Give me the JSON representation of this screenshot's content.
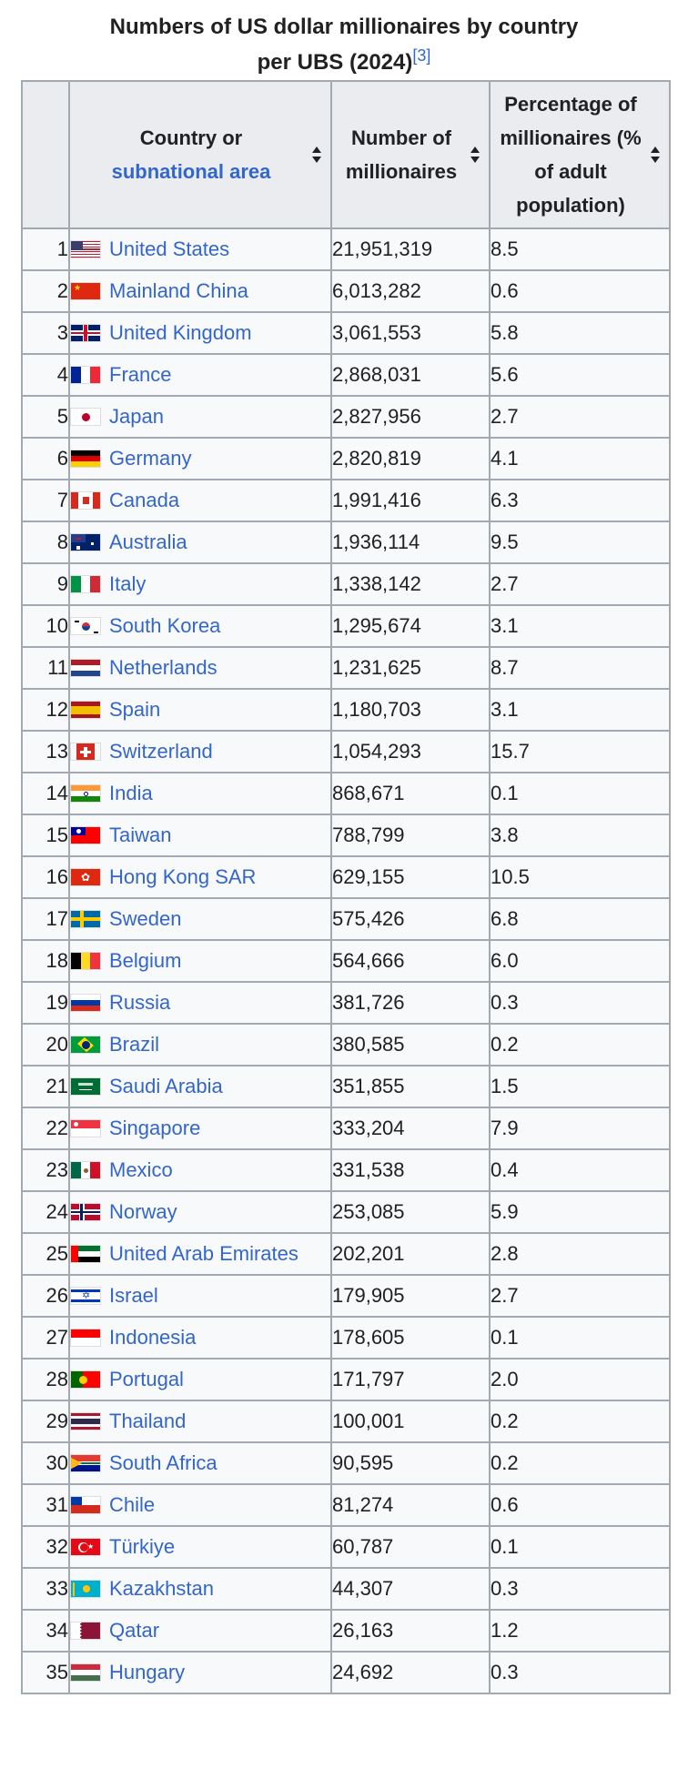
{
  "caption": {
    "line1": "Numbers of US dollar millionaires by country",
    "line2": "per UBS (2024)",
    "ref": "[3]"
  },
  "table": {
    "headers": {
      "country_line1": "Country or",
      "country_link": "subnational area",
      "number": "Number of millionaires",
      "percentage": "Percentage of millionaires (% of adult population)"
    },
    "rows": [
      {
        "rank": "1",
        "country": "United States",
        "flag": "us",
        "number": "21,951,319",
        "pct": "8.5"
      },
      {
        "rank": "2",
        "country": "Mainland China",
        "flag": "cn",
        "number": "6,013,282",
        "pct": "0.6"
      },
      {
        "rank": "3",
        "country": "United Kingdom",
        "flag": "gb",
        "number": "3,061,553",
        "pct": "5.8"
      },
      {
        "rank": "4",
        "country": "France",
        "flag": "fr",
        "number": "2,868,031",
        "pct": "5.6"
      },
      {
        "rank": "5",
        "country": "Japan",
        "flag": "jp",
        "number": "2,827,956",
        "pct": "2.7"
      },
      {
        "rank": "6",
        "country": "Germany",
        "flag": "de",
        "number": "2,820,819",
        "pct": "4.1"
      },
      {
        "rank": "7",
        "country": "Canada",
        "flag": "ca",
        "number": "1,991,416",
        "pct": "6.3"
      },
      {
        "rank": "8",
        "country": "Australia",
        "flag": "au",
        "number": "1,936,114",
        "pct": "9.5"
      },
      {
        "rank": "9",
        "country": "Italy",
        "flag": "it",
        "number": "1,338,142",
        "pct": "2.7"
      },
      {
        "rank": "10",
        "country": "South Korea",
        "flag": "kr",
        "number": "1,295,674",
        "pct": "3.1"
      },
      {
        "rank": "11",
        "country": "Netherlands",
        "flag": "nl",
        "number": "1,231,625",
        "pct": "8.7"
      },
      {
        "rank": "12",
        "country": "Spain",
        "flag": "es",
        "number": "1,180,703",
        "pct": "3.1"
      },
      {
        "rank": "13",
        "country": "Switzerland",
        "flag": "ch",
        "number": "1,054,293",
        "pct": "15.7"
      },
      {
        "rank": "14",
        "country": "India",
        "flag": "in",
        "number": "868,671",
        "pct": "0.1"
      },
      {
        "rank": "15",
        "country": "Taiwan",
        "flag": "tw",
        "number": "788,799",
        "pct": "3.8"
      },
      {
        "rank": "16",
        "country": "Hong Kong SAR",
        "flag": "hk",
        "number": "629,155",
        "pct": "10.5"
      },
      {
        "rank": "17",
        "country": "Sweden",
        "flag": "se",
        "number": "575,426",
        "pct": "6.8"
      },
      {
        "rank": "18",
        "country": "Belgium",
        "flag": "be",
        "number": "564,666",
        "pct": "6.0"
      },
      {
        "rank": "19",
        "country": "Russia",
        "flag": "ru",
        "number": "381,726",
        "pct": "0.3"
      },
      {
        "rank": "20",
        "country": "Brazil",
        "flag": "br",
        "number": "380,585",
        "pct": "0.2"
      },
      {
        "rank": "21",
        "country": "Saudi Arabia",
        "flag": "sa",
        "number": "351,855",
        "pct": "1.5"
      },
      {
        "rank": "22",
        "country": "Singapore",
        "flag": "sg",
        "number": "333,204",
        "pct": "7.9"
      },
      {
        "rank": "23",
        "country": "Mexico",
        "flag": "mx",
        "number": "331,538",
        "pct": "0.4"
      },
      {
        "rank": "24",
        "country": "Norway",
        "flag": "no",
        "number": "253,085",
        "pct": "5.9"
      },
      {
        "rank": "25",
        "country": "United Arab Emirates",
        "flag": "ae",
        "number": "202,201",
        "pct": "2.8"
      },
      {
        "rank": "26",
        "country": "Israel",
        "flag": "il",
        "number": "179,905",
        "pct": "2.7"
      },
      {
        "rank": "27",
        "country": "Indonesia",
        "flag": "id",
        "number": "178,605",
        "pct": "0.1"
      },
      {
        "rank": "28",
        "country": "Portugal",
        "flag": "pt",
        "number": "171,797",
        "pct": "2.0"
      },
      {
        "rank": "29",
        "country": "Thailand",
        "flag": "th",
        "number": "100,001",
        "pct": "0.2"
      },
      {
        "rank": "30",
        "country": "South Africa",
        "flag": "za",
        "number": "90,595",
        "pct": "0.2"
      },
      {
        "rank": "31",
        "country": "Chile",
        "flag": "cl",
        "number": "81,274",
        "pct": "0.6"
      },
      {
        "rank": "32",
        "country": "Türkiye",
        "flag": "tr",
        "number": "60,787",
        "pct": "0.1"
      },
      {
        "rank": "33",
        "country": "Kazakhstan",
        "flag": "kz",
        "number": "44,307",
        "pct": "0.3"
      },
      {
        "rank": "34",
        "country": "Qatar",
        "flag": "qa",
        "number": "26,163",
        "pct": "1.2"
      },
      {
        "rank": "35",
        "country": "Hungary",
        "flag": "hu",
        "number": "24,692",
        "pct": "0.3"
      }
    ]
  },
  "colors": {
    "link": "#3366cc",
    "header_bg": "#eaecf0",
    "cell_bg": "#f8f9fa",
    "border": "#a2a9b1",
    "text": "#202122"
  }
}
